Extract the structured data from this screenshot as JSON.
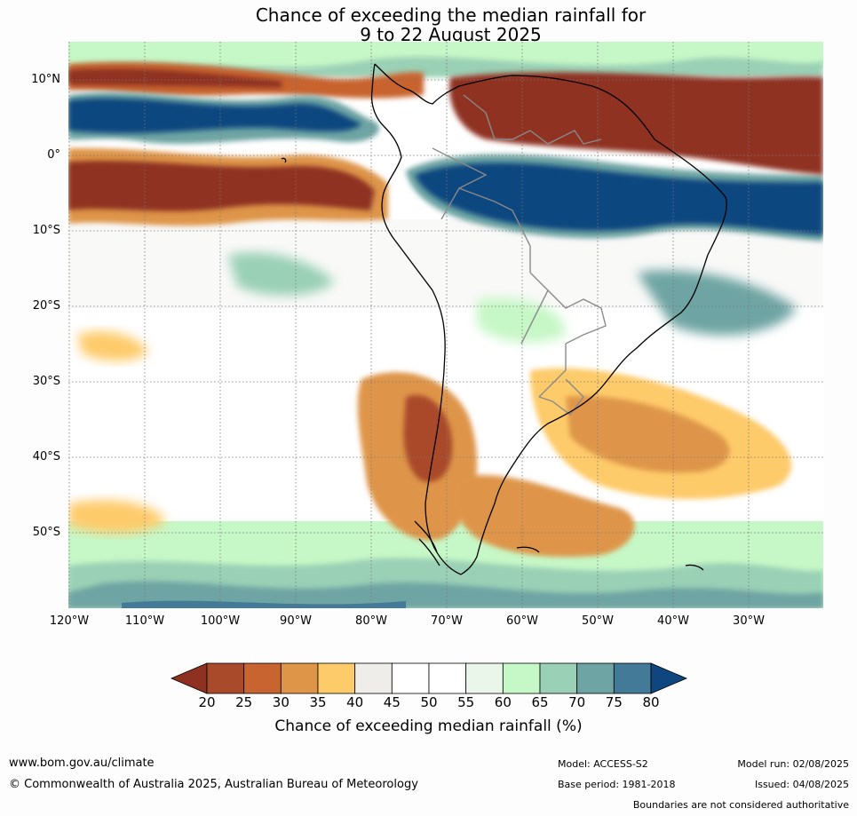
{
  "title": {
    "line1": "Chance of exceeding the median rainfall for",
    "line2": "9 to 22 August 2025"
  },
  "map": {
    "region": "South America",
    "lat_labels": [
      "10°N",
      "0°",
      "10°S",
      "20°S",
      "30°S",
      "40°S",
      "50°S"
    ],
    "lon_labels": [
      "120°W",
      "110°W",
      "100°W",
      "90°W",
      "80°W",
      "70°W",
      "60°W",
      "50°W",
      "40°W",
      "30°W"
    ],
    "grid": "dotted",
    "colors": {
      "coast": "#000000",
      "borders": "#8a8a8a",
      "grid": "#777777",
      "background": "#ffffff"
    }
  },
  "colorbar": {
    "ticks": [
      "20",
      "25",
      "30",
      "35",
      "40",
      "45",
      "50",
      "55",
      "60",
      "65",
      "70",
      "75",
      "80"
    ],
    "colors": [
      "#8f3120",
      "#a94a2a",
      "#c8642f",
      "#de9548",
      "#fecb6b",
      "#efedea",
      "#ffffff",
      "#ffffff",
      "#eaf6ea",
      "#c6f7c6",
      "#9ad0b5",
      "#6ea4a3",
      "#437a97",
      "#10467f"
    ],
    "label": "Chance of exceeding median rainfall (%)"
  },
  "footer": {
    "url": "www.bom.gov.au/climate",
    "copyright": "© Commonwealth of Australia 2025, Australian Bureau of Meteorology",
    "model": "Model: ACCESS-S2",
    "base_period": "Base period: 1981-2018",
    "model_run": "Model run: 02/08/2025",
    "issued": "Issued: 04/08/2025",
    "boundaries_note": "Boundaries are not considered authoritative"
  }
}
